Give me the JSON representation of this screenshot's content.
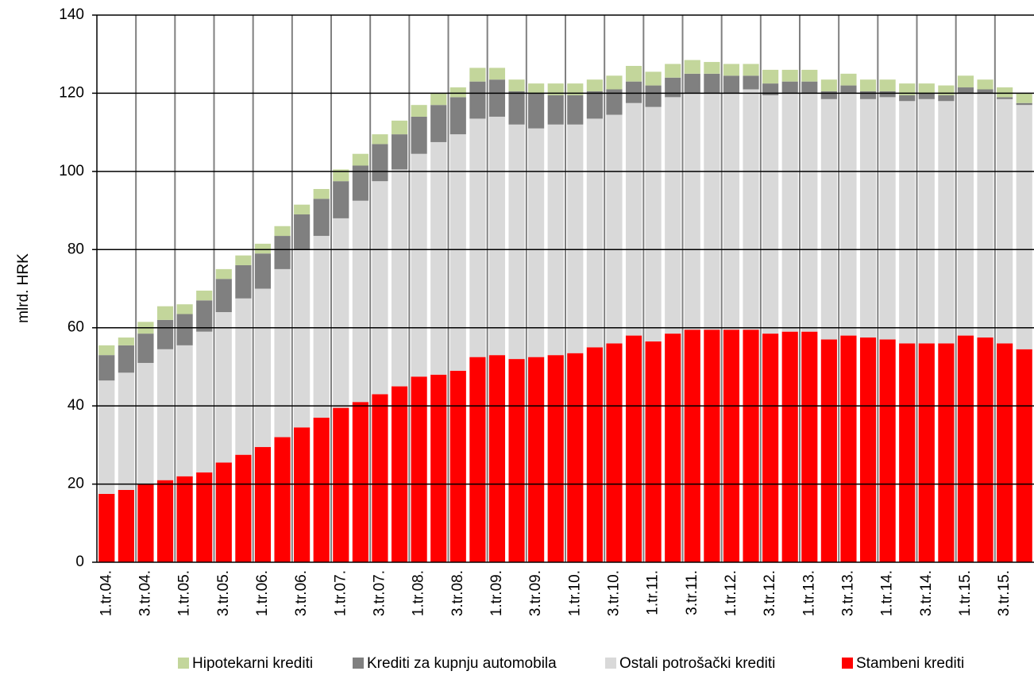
{
  "chart_data": {
    "type": "stacked_bar",
    "y_label": "mlrd. HRK",
    "categories": [
      "1.tr.04.",
      null,
      "3.tr.04.",
      null,
      "1.tr.05.",
      null,
      "3.tr.05.",
      null,
      "1.tr.06.",
      null,
      "3.tr.06.",
      null,
      "1.tr.07.",
      null,
      "3.tr.07.",
      null,
      "1.tr.08.",
      null,
      "3.tr.08.",
      null,
      "1.tr.09.",
      null,
      "3.tr.09.",
      null,
      "1.tr.10.",
      null,
      "3.tr.10.",
      null,
      "1.tr.11.",
      null,
      "3.tr.11.",
      null,
      "1.tr.12.",
      null,
      "3.tr.12.",
      null,
      "1.tr.13.",
      null,
      "3.tr.13.",
      null,
      "1.tr.14.",
      null,
      "3.tr.14.",
      null,
      "1.tr.15.",
      null,
      "3.tr.15.",
      null
    ],
    "series": [
      {
        "name": "Hipotekarni krediti",
        "color": "#c3d69b",
        "values": [
          2.5,
          2,
          3,
          3.5,
          2.5,
          2.5,
          2.5,
          2.5,
          2.5,
          2.5,
          2.5,
          2.5,
          3,
          3,
          2.5,
          3.5,
          3,
          3,
          2.5,
          3.5,
          3,
          3,
          2.5,
          3,
          3,
          3,
          3.5,
          4,
          3.5,
          3.5,
          3.5,
          3,
          3,
          3,
          3.5,
          3,
          3,
          3,
          3,
          3,
          3,
          3,
          2.5,
          2.5,
          3,
          2.5,
          2.5,
          2.5
        ]
      },
      {
        "name": "Krediti za kupnju automobila",
        "color": "#808080",
        "values": [
          6.5,
          7,
          7.5,
          7.5,
          8,
          8,
          8.5,
          8.5,
          9,
          8.5,
          9,
          9.5,
          9.5,
          9,
          9.5,
          9,
          9.5,
          9.5,
          9.5,
          9.5,
          9.5,
          8.5,
          9,
          7.5,
          7.5,
          7,
          6.5,
          5.5,
          5.5,
          5,
          5,
          5,
          4.5,
          3.5,
          3,
          3,
          3,
          2,
          2,
          2,
          1.5,
          1.5,
          1.5,
          1.5,
          1.5,
          1,
          0.5,
          0.5
        ]
      },
      {
        "name": "Ostali potrošački krediti",
        "color": "#d9d9d9",
        "values": [
          29,
          30,
          31,
          33.5,
          33.5,
          36,
          38.5,
          40,
          40.5,
          43,
          45.5,
          46.5,
          48.5,
          51.5,
          54.5,
          55.5,
          57,
          59.5,
          60.5,
          61,
          61,
          60,
          58.5,
          59,
          58.5,
          58.5,
          58.5,
          59.5,
          60,
          60.5,
          60.5,
          60.5,
          60.5,
          61.5,
          61,
          61,
          61,
          61.5,
          62,
          61,
          62,
          62,
          62.5,
          62,
          62,
          62.5,
          62.5,
          62.5
        ]
      },
      {
        "name": "Stambeni krediti",
        "color": "#ff0000",
        "values": [
          17.5,
          18.5,
          20,
          21,
          22,
          23,
          25.5,
          27.5,
          29.5,
          32,
          34.5,
          37,
          39.5,
          41,
          43,
          45,
          47.5,
          48,
          49,
          52.5,
          53,
          52,
          52.5,
          53,
          53.5,
          55,
          56,
          58,
          56.5,
          58.5,
          59.5,
          59.5,
          59.5,
          59.5,
          58.5,
          59,
          59,
          57,
          58,
          57.5,
          57,
          56,
          56,
          56,
          58,
          57.5,
          56,
          54.5
        ]
      }
    ],
    "ylim": [
      0,
      140
    ],
    "yticks": [
      0,
      20,
      40,
      60,
      80,
      100,
      120,
      140
    ],
    "grid": true,
    "legend": "bottom"
  }
}
